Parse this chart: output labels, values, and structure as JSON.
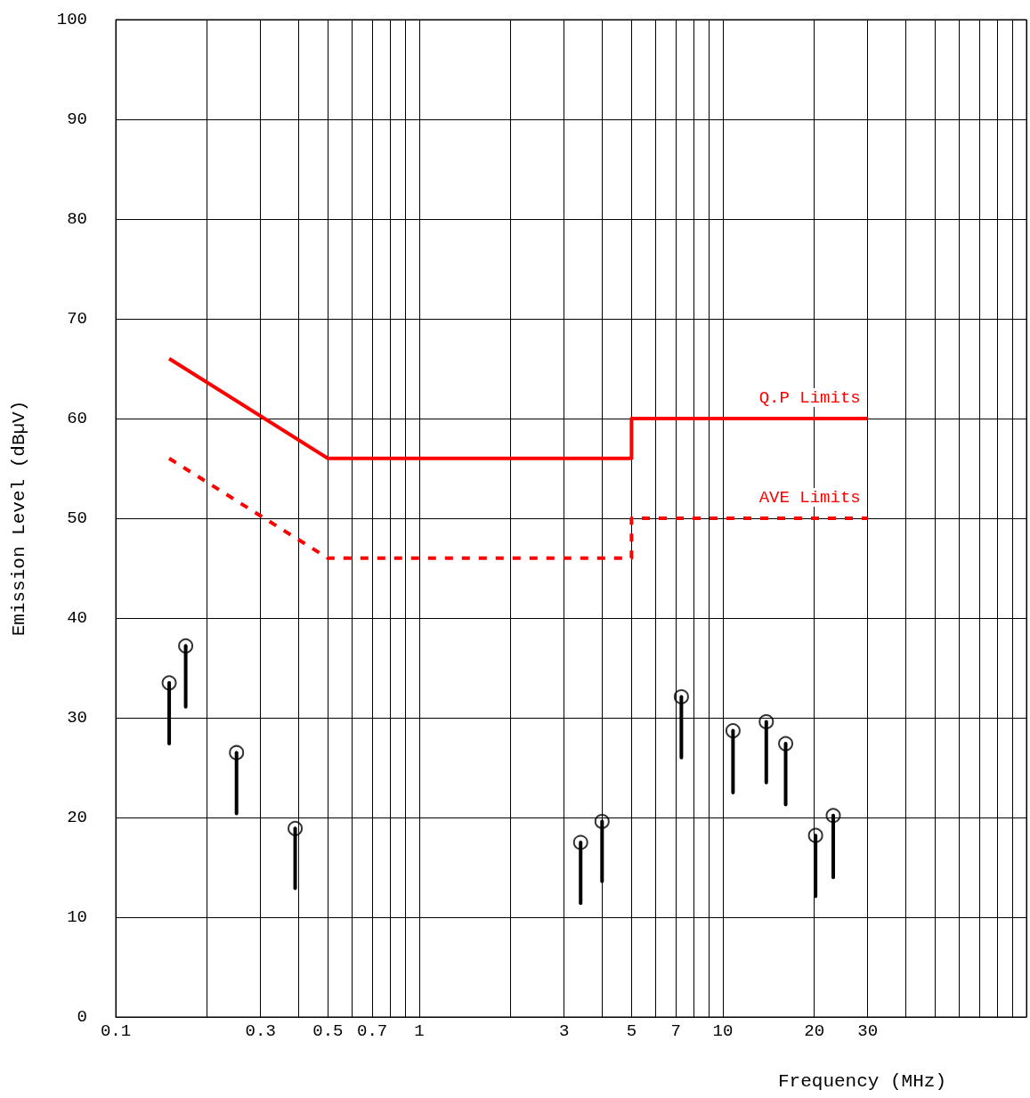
{
  "chart_data": {
    "type": "scatter",
    "xlabel": "Frequency (MHz)",
    "ylabel": "Emission Level (dBµV)",
    "log": "x",
    "xlim": [
      0.1,
      100
    ],
    "ylim": [
      0,
      100
    ],
    "xticks": [
      0.1,
      {
        "value": 0.2,
        "label": null
      },
      0.3,
      {
        "value": 0.4,
        "label": null
      },
      0.5,
      {
        "value": 0.6,
        "label": null
      },
      0.7,
      {
        "value": 0.8,
        "label": null
      },
      {
        "value": 0.9,
        "label": null
      },
      1,
      {
        "value": 2,
        "label": null
      },
      3,
      {
        "value": 4,
        "label": null
      },
      5,
      {
        "value": 6,
        "label": null
      },
      7,
      {
        "value": 8,
        "label": null
      },
      {
        "value": 9,
        "label": null
      },
      10,
      20,
      30,
      {
        "value": 40,
        "label": null
      },
      {
        "value": 50,
        "label": null
      },
      {
        "value": 60,
        "label": null
      },
      {
        "value": 70,
        "label": null
      },
      {
        "value": 80,
        "label": null
      },
      {
        "value": 90,
        "label": null
      },
      {
        "value": 100,
        "label": null
      }
    ],
    "yticks": [
      0,
      10,
      20,
      30,
      40,
      50,
      60,
      70,
      80,
      90,
      100
    ],
    "grid": true,
    "legend": false,
    "series": [
      {
        "type": "line",
        "name": "Q.P Limits",
        "color": "#ff0000",
        "line_style": "solid",
        "marker": "none",
        "x": [
          0.15,
          0.5,
          5,
          5,
          30
        ],
        "values": [
          66,
          56,
          56,
          60,
          60
        ]
      },
      {
        "type": "line",
        "name": "AVE Limits",
        "color": "#ff0000",
        "line_style": "dashed",
        "marker": "none",
        "x": [
          0.15,
          0.5,
          5,
          5,
          30
        ],
        "values": [
          56,
          46,
          46,
          50,
          50
        ]
      },
      {
        "color": "#000000",
        "marker": "circle",
        "x": [
          0.15,
          0.17,
          0.25,
          0.39,
          3.4,
          4.0,
          7.3,
          10.8,
          13.9,
          16.1,
          20.2,
          23.1
        ],
        "values": [
          33.5,
          37.2,
          26.5,
          18.9,
          17.5,
          19.6,
          32.1,
          28.7,
          29.6,
          27.4,
          18.2,
          20.2
        ],
        "errors": [
          [
            27.4,
            33.5
          ],
          [
            31.1,
            37.2
          ],
          [
            20.4,
            26.5
          ],
          [
            12.9,
            18.9
          ],
          [
            11.4,
            17.5
          ],
          [
            13.6,
            19.6
          ],
          [
            26.0,
            32.1
          ],
          [
            22.5,
            28.7
          ],
          [
            23.5,
            29.6
          ],
          [
            21.3,
            27.4
          ],
          [
            12.1,
            18.2
          ],
          [
            14.0,
            20.2
          ]
        ]
      }
    ]
  }
}
